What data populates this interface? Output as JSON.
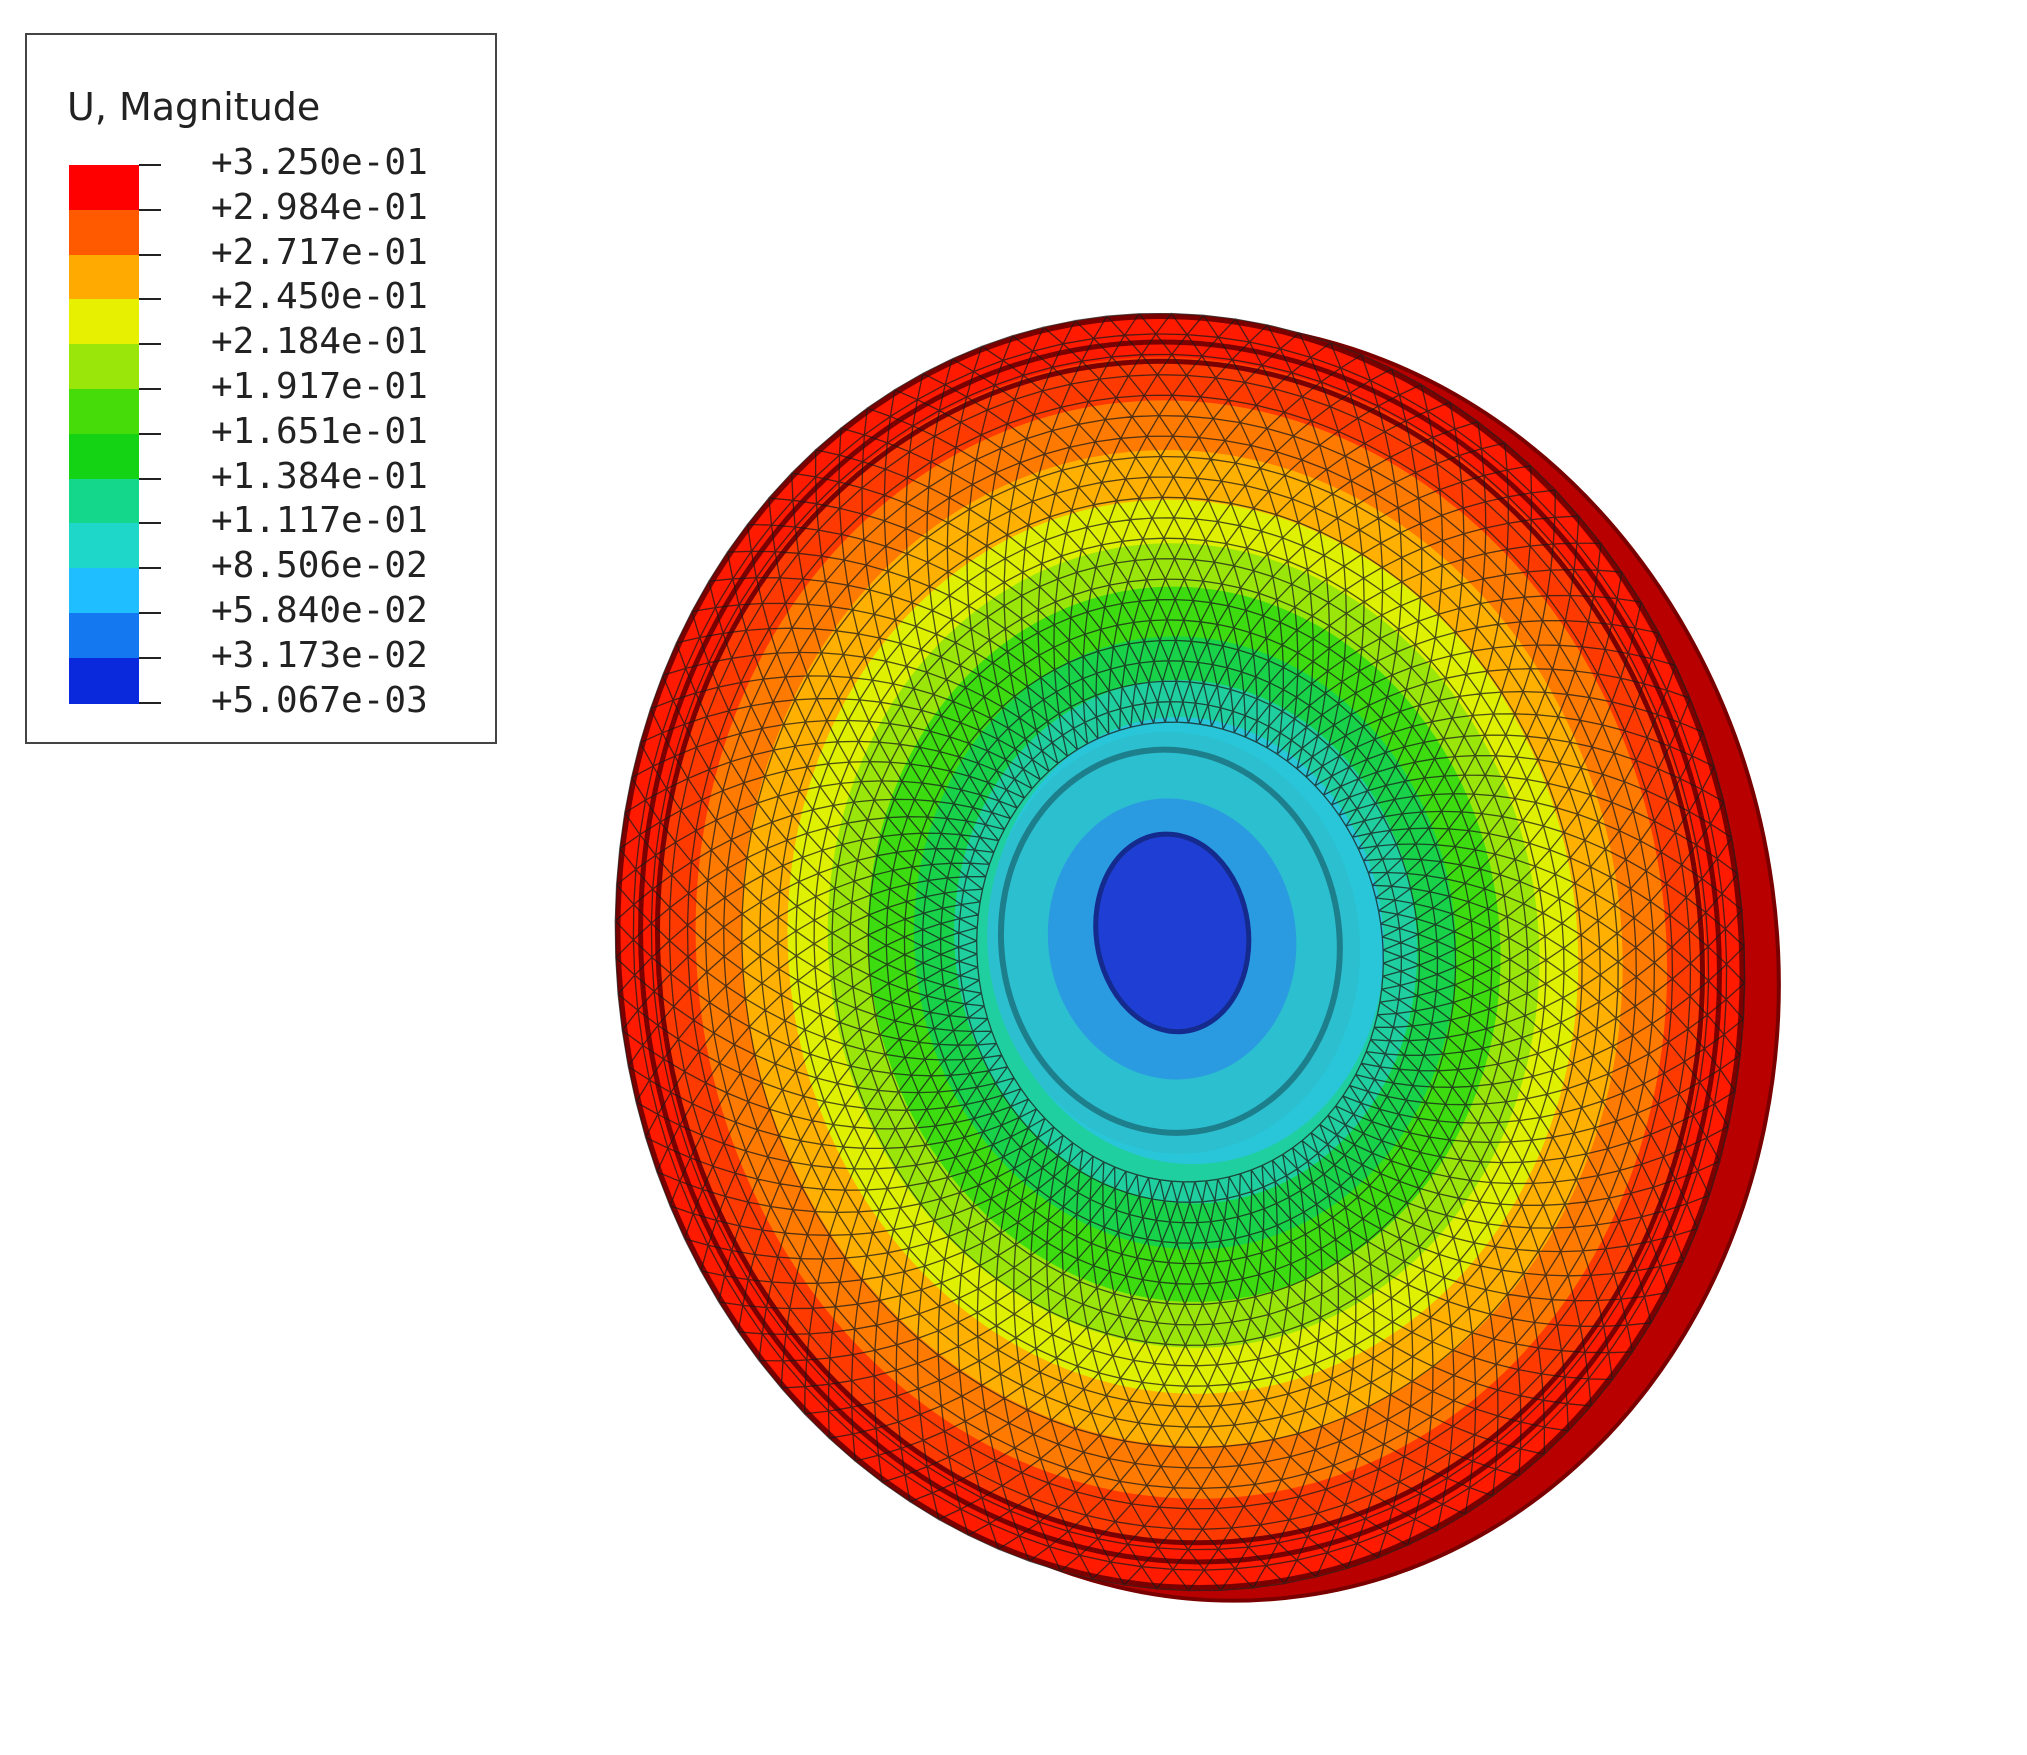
{
  "legend": {
    "title": "U, Magnitude",
    "levels": [
      {
        "label": "+3.250e-01",
        "color": "#ff0000"
      },
      {
        "label": "+2.984e-01",
        "color": "#ff5a00"
      },
      {
        "label": "+2.717e-01",
        "color": "#ffaa00"
      },
      {
        "label": "+2.450e-01",
        "color": "#e6f000"
      },
      {
        "label": "+2.184e-01",
        "color": "#9ae60a"
      },
      {
        "label": "+1.917e-01",
        "color": "#46dc0a"
      },
      {
        "label": "+1.651e-01",
        "color": "#14d214"
      },
      {
        "label": "+1.384e-01",
        "color": "#14d78c"
      },
      {
        "label": "+1.117e-01",
        "color": "#1ed7c8"
      },
      {
        "label": "+8.506e-02",
        "color": "#1ebeff"
      },
      {
        "label": "+5.840e-02",
        "color": "#1478f0"
      },
      {
        "label": "+3.173e-02",
        "color": "#0a28dc"
      },
      {
        "label": "+5.067e-03",
        "color": null
      }
    ]
  },
  "model": {
    "contour_bands": [
      {
        "color": "#ff1a00"
      },
      {
        "color": "#ff3a00"
      },
      {
        "color": "#ff7a00"
      },
      {
        "color": "#ffb000"
      },
      {
        "color": "#dff000"
      },
      {
        "color": "#9ae60a"
      },
      {
        "color": "#3cdc10"
      },
      {
        "color": "#18d24a"
      },
      {
        "color": "#20cfa0"
      },
      {
        "color": "#28c6d8"
      },
      {
        "color": "#2aa6e6"
      },
      {
        "color": "#1c62dc"
      },
      {
        "color": "#1a3ed0"
      }
    ],
    "mesh_color": "#1a1a1a",
    "edge_color": "#7a0000"
  }
}
